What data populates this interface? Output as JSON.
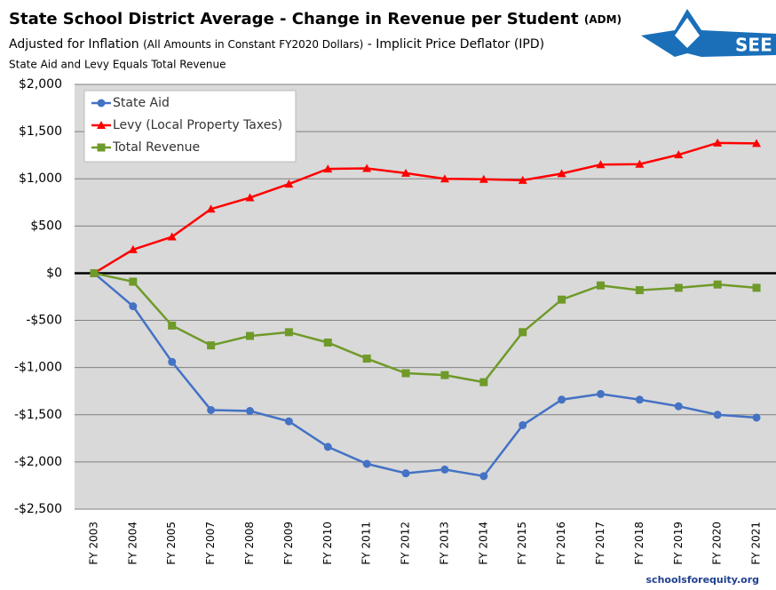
{
  "chart_data": {
    "type": "line",
    "title": "State School District Average - Change in Revenue per Student",
    "title_note": "(ADM)",
    "subtitle_parts": [
      "Adjusted for Inflation",
      "(All Amounts in Constant FY2020 Dollars)",
      "- Implicit Price Deflator (IPD)"
    ],
    "note": "State Aid and Levy Equals Total Revenue",
    "logo_text": "SEE",
    "source": "schoolsforequity.org",
    "categories": [
      "FY 2003",
      "FY 2004",
      "FY 2005",
      "FY 2007",
      "FY 2008",
      "FY 2009",
      "FY 2010",
      "FY 2011",
      "FY 2012",
      "FY 2013",
      "FY 2014",
      "FY 2015",
      "FY 2016",
      "FY 2017",
      "FY 2018",
      "FY 2019",
      "FY 2020",
      "FY 2021"
    ],
    "series": [
      {
        "name": "State Aid",
        "color": "#4472c4",
        "marker": "circle",
        "values": [
          0,
          -350,
          -940,
          -1450,
          -1460,
          -1570,
          -1840,
          -2020,
          -2120,
          -2080,
          -2150,
          -1610,
          -1340,
          -1280,
          -1340,
          -1410,
          -1500,
          -1530
        ]
      },
      {
        "name": "Levy (Local Property Taxes)",
        "color": "#ff0000",
        "marker": "triangle",
        "values": [
          0,
          250,
          385,
          680,
          800,
          945,
          1105,
          1110,
          1060,
          1000,
          995,
          985,
          1055,
          1150,
          1155,
          1255,
          1380,
          1375
        ]
      },
      {
        "name": "Total Revenue",
        "color": "#6f9a2a",
        "marker": "square",
        "values": [
          0,
          -90,
          -555,
          -765,
          -665,
          -625,
          -735,
          -905,
          -1060,
          -1080,
          -1155,
          -625,
          -280,
          -130,
          -180,
          -155,
          -120,
          -155
        ]
      }
    ],
    "ylim": [
      -2500,
      2000
    ],
    "yticks": [
      {
        "value": 2000,
        "label": "$2,000"
      },
      {
        "value": 1500,
        "label": "$1,500"
      },
      {
        "value": 1000,
        "label": "$1,000"
      },
      {
        "value": 500,
        "label": "$500"
      },
      {
        "value": 0,
        "label": "$0"
      },
      {
        "value": -500,
        "label": "-$500"
      },
      {
        "value": -1000,
        "label": "-$1,000"
      },
      {
        "value": -1500,
        "label": "-$1,500"
      },
      {
        "value": -2000,
        "label": "-$2,000"
      },
      {
        "value": -2500,
        "label": "-$2,500"
      }
    ],
    "grid": true,
    "legend": "upper left"
  }
}
